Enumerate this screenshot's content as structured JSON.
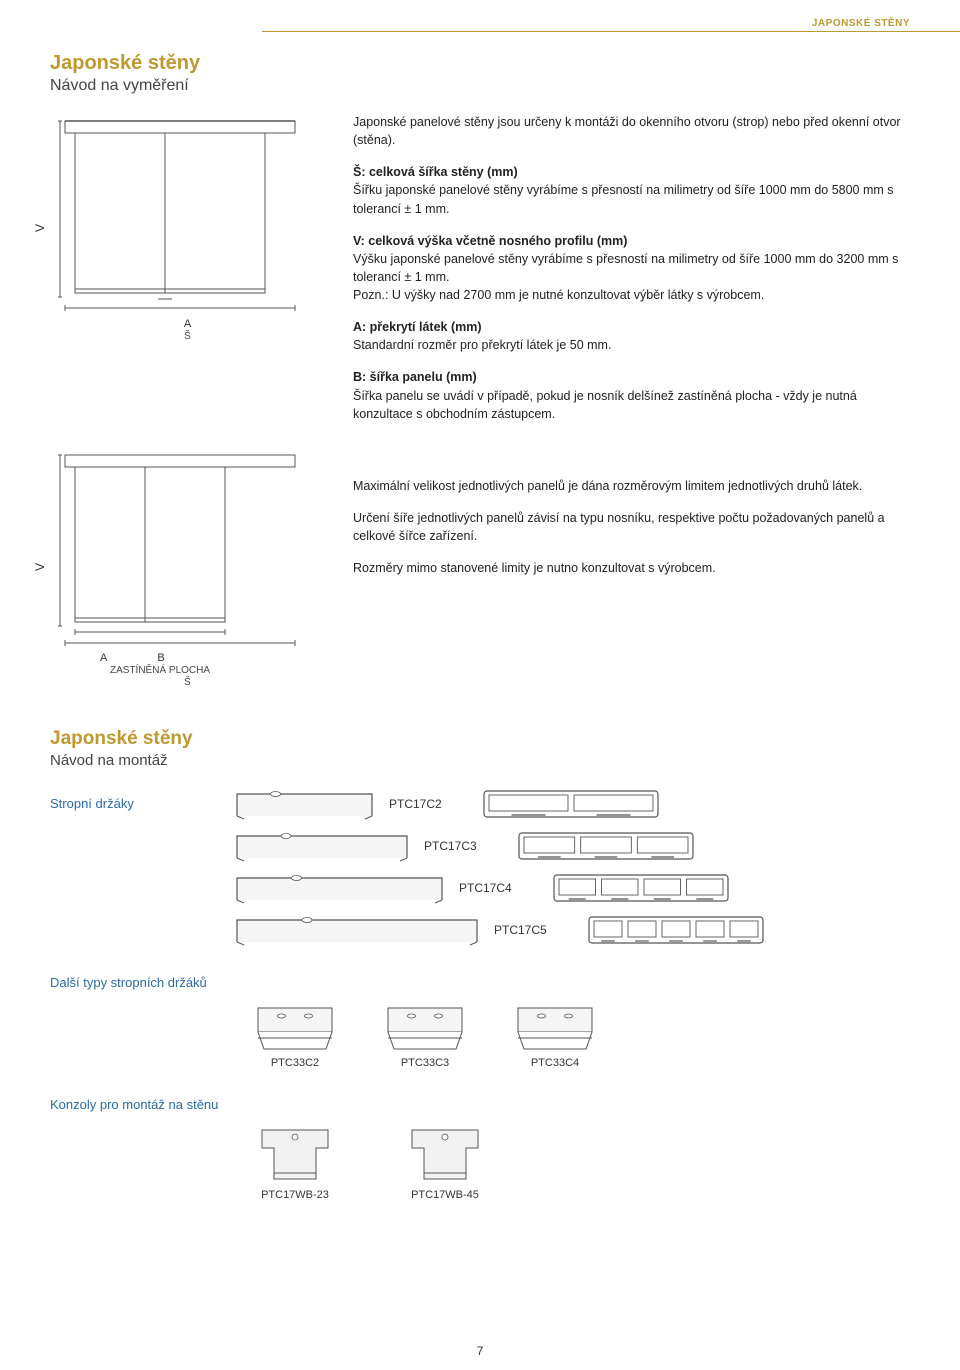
{
  "colors": {
    "accent": "#c09830",
    "text": "#333333",
    "link": "#2a6aa8",
    "line": "#555555",
    "bg": "#ffffff"
  },
  "header": {
    "category": "JAPONSKÉ STĚNY"
  },
  "page_number": "7",
  "section1": {
    "title": "Japonské stěny",
    "subtitle": "Návod na vyměření",
    "intro": "Japonské panelové stěny jsou určeny k montáži do okenního otvoru (strop) nebo před okenní otvor (stěna).",
    "S_title": "Š: celková šířka stěny (mm)",
    "S_text": "Šířku japonské panelové stěny vyrábíme s přesností na milimetry od šíře 1000 mm do 5800 mm s tolerancí ± 1 mm.",
    "V_title": "V: celková výška včetně nosného profilu (mm)",
    "V_text": "Výšku japonské panelové stěny vyrábíme s přesností na milimetry od šíře 1000 mm do 3200 mm s tolerancí ± 1 mm.",
    "V_note": "Pozn.: U výšky nad 2700 mm je nutné konzultovat výběr látky s výrobcem.",
    "A_title": "A: překrytí látek (mm)",
    "A_text": "Standardní rozměr pro překrytí látek je 50 mm.",
    "B_title": "B: šířka panelu (mm)",
    "B_text": "Šířka panelu se uvádí v případě, pokud je nosník delšínež zastíněná plocha - vždy je nutná konzultace s obchodním zástupcem.",
    "max_text": "Maximální velikost jednotlivých panelů je dána rozměrovým limitem jednotlivých druhů látek.",
    "width_text": "Určení šíře jednotlivých panelů závisí na typu nosníku, respektive počtu požadovaných panelů a celkové šířce zařízení.",
    "limits_text": "Rozměry mimo stanovené limity je nutno konzultovat s výrobcem.",
    "diagram1": {
      "v_label": "V",
      "a_label": "A",
      "s_label": "Š"
    },
    "diagram2": {
      "v_label": "V",
      "a_label": "A",
      "b_label": "B",
      "s_label": "Š",
      "caption": "ZASTÍNĚNÁ PLOCHA"
    }
  },
  "section2": {
    "title": "Japonské stěny",
    "subtitle": "Návod na montáž",
    "ceiling_label": "Stropní držáky",
    "brackets": [
      {
        "code": "PTC17C2",
        "channels": 2,
        "bracket_w": 145
      },
      {
        "code": "PTC17C3",
        "channels": 3,
        "bracket_w": 180
      },
      {
        "code": "PTC17C4",
        "channels": 4,
        "bracket_w": 215
      },
      {
        "code": "PTC17C5",
        "channels": 5,
        "bracket_w": 250
      }
    ],
    "other_label": "Další typy stropních držáků",
    "other_brackets": [
      {
        "code": "PTC33C2"
      },
      {
        "code": "PTC33C3"
      },
      {
        "code": "PTC33C4"
      }
    ],
    "wall_label": "Konzoly pro montáž na stěnu",
    "wall_brackets": [
      {
        "code": "PTC17WB-23"
      },
      {
        "code": "PTC17WB-45"
      }
    ]
  }
}
